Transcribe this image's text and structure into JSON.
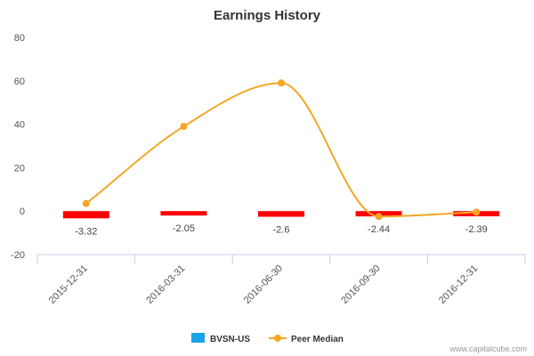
{
  "chart_data": {
    "type": "bar",
    "title": "Earnings History",
    "categories": [
      "2015-12-31",
      "2016-03-31",
      "2016-06-30",
      "2016-09-30",
      "2016-12-31"
    ],
    "series": [
      {
        "name": "BVSN-US",
        "type": "bar",
        "color": "#ff0000",
        "values": [
          -3.32,
          -2.05,
          -2.6,
          -2.44,
          -2.39
        ],
        "data_labels": [
          "-3.32",
          "-2.05",
          "-2.6",
          "-2.44",
          "-2.39"
        ]
      },
      {
        "name": "Peer Median",
        "type": "line",
        "color": "#f5a623",
        "values": [
          3.5,
          39,
          59,
          -2.5,
          -0.5
        ]
      }
    ],
    "yticks": [
      "80",
      "60",
      "40",
      "20",
      "0",
      "-20"
    ],
    "ylim": [
      -20,
      80
    ],
    "grid": false,
    "legend": {
      "placement": "bottom-center",
      "items": [
        "BVSN-US",
        "Peer Median"
      ],
      "colors": [
        "#1aa3e8",
        "#f5a623"
      ]
    }
  },
  "footer": "www.capitalcube.com"
}
